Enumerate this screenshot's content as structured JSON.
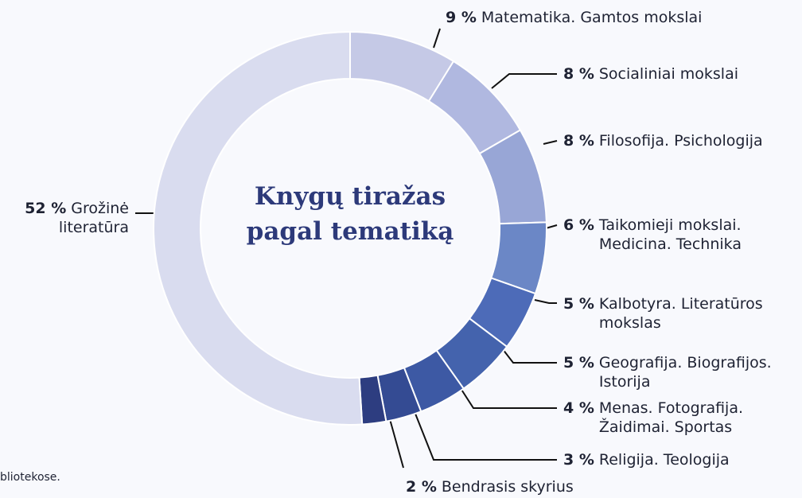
{
  "chart_data": {
    "type": "pie",
    "donut": true,
    "title": "Knygų tiražas pagal tematiką",
    "categories": [
      "Matematika. Gamtos mokslai",
      "Socialiniai mokslai",
      "Filosofija. Psichologija",
      "Taikomieji mokslai. Medicina. Technika",
      "Kalbotyra. Literatūros mokslas",
      "Geografija. Biografijos. Istorija",
      "Menas. Fotografija. Žaidimai. Sportas",
      "Religija. Teologija",
      "Bendrasis skyrius",
      "Grožinė literatūra"
    ],
    "values": [
      9,
      8,
      8,
      6,
      5,
      5,
      4,
      3,
      2,
      52
    ],
    "value_labels": [
      "9 %",
      "8 %",
      "8 %",
      "6 %",
      "5 %",
      "5 %",
      "4 %",
      "3 %",
      "2 %",
      "52 %"
    ],
    "colors": [
      "#c5c9e6",
      "#b0b8e0",
      "#98a6d6",
      "#6b87c6",
      "#4d6bb8",
      "#4463ad",
      "#3d59a4",
      "#344b93",
      "#2d3d80",
      "#d9dcef"
    ]
  },
  "footnote": "bliotekose."
}
